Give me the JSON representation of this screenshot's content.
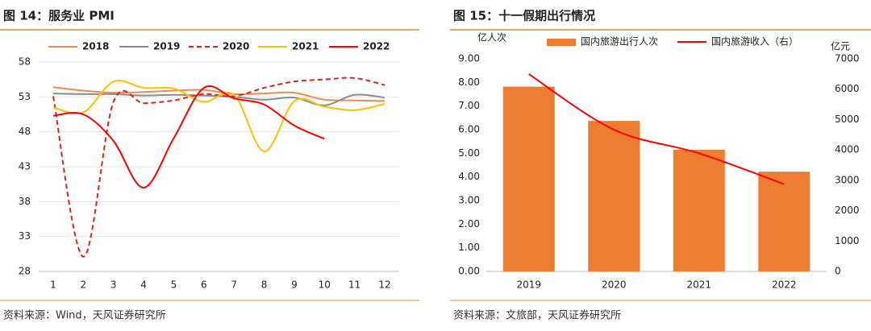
{
  "chart_data": [
    {
      "type": "line",
      "title": "图 14：服务业 PMI",
      "source": "资料来源：Wind，天风证券研究所",
      "x": [
        1,
        2,
        3,
        4,
        5,
        6,
        7,
        8,
        9,
        10,
        11,
        12
      ],
      "xticks": [
        1,
        2,
        3,
        4,
        5,
        6,
        7,
        8,
        9,
        10,
        11,
        12
      ],
      "xlim": [
        1,
        12
      ],
      "ylim": [
        28,
        58
      ],
      "yticks": [
        28,
        33,
        38,
        43,
        48,
        53,
        58
      ],
      "grid": true,
      "legend": "top",
      "series": [
        {
          "name": "2018",
          "color": "#f08a4b",
          "dashed": false,
          "values": [
            54.4,
            53.9,
            53.6,
            53.7,
            53.9,
            54.0,
            53.4,
            53.5,
            53.6,
            52.6,
            52.5,
            52.4
          ]
        },
        {
          "name": "2019",
          "color": "#8c8c8c",
          "dashed": false,
          "values": [
            53.5,
            53.4,
            53.4,
            53.2,
            53.3,
            53.2,
            53.0,
            52.6,
            52.9,
            51.8,
            53.3,
            52.9
          ]
        },
        {
          "name": "2020",
          "color": "#d9251c",
          "dashed": true,
          "values": [
            53.1,
            30.1,
            52.3,
            52.1,
            52.5,
            53.4,
            53.1,
            54.3,
            55.2,
            55.5,
            55.7,
            54.7
          ]
        },
        {
          "name": "2021",
          "color": "#ffc000",
          "dashed": false,
          "values": [
            51.5,
            50.8,
            55.2,
            54.3,
            54.2,
            52.3,
            53.3,
            45.2,
            52.4,
            51.6,
            51.1,
            52.0
          ]
        },
        {
          "name": "2022",
          "color": "#ff0000",
          "dashed": false,
          "values": [
            50.3,
            50.5,
            46.7,
            40.0,
            47.1,
            54.3,
            52.8,
            51.9,
            48.9,
            47.0,
            null,
            null
          ]
        }
      ]
    },
    {
      "type": "bar",
      "title": "图 15：十一假期出行情况",
      "source": "资料来源：文旅部，天风证券研究所",
      "ylabel": "亿人次",
      "y2label": "亿元",
      "legend": "top",
      "categories": [
        "2019",
        "2020",
        "2021",
        "2022"
      ],
      "ylim": [
        0,
        9
      ],
      "yticks": [
        {
          "value": 0,
          "label": "0.00"
        },
        {
          "value": 1,
          "label": "1.00"
        },
        {
          "value": 2,
          "label": "2.00"
        },
        {
          "value": 3,
          "label": "3.00"
        },
        {
          "value": 4,
          "label": "4.00"
        },
        {
          "value": 5,
          "label": "5.00"
        },
        {
          "value": 6,
          "label": "6.00"
        },
        {
          "value": 7,
          "label": "7.00"
        },
        {
          "value": 8,
          "label": "8.00"
        },
        {
          "value": 9,
          "label": "9.00"
        }
      ],
      "y2lim": [
        0,
        7000
      ],
      "y2ticks": [
        0,
        1000,
        2000,
        3000,
        4000,
        5000,
        6000,
        7000
      ],
      "series": [
        {
          "name": "国内旅游出行人次",
          "type": "bar",
          "color": "#ed7d31",
          "values": [
            7.82,
            6.37,
            5.15,
            4.22
          ]
        },
        {
          "name": "国内旅游收入（右）",
          "type": "line",
          "axis": "y2",
          "color": "#ff0000",
          "values": [
            6497,
            4666,
            3890,
            2872
          ]
        }
      ]
    }
  ]
}
